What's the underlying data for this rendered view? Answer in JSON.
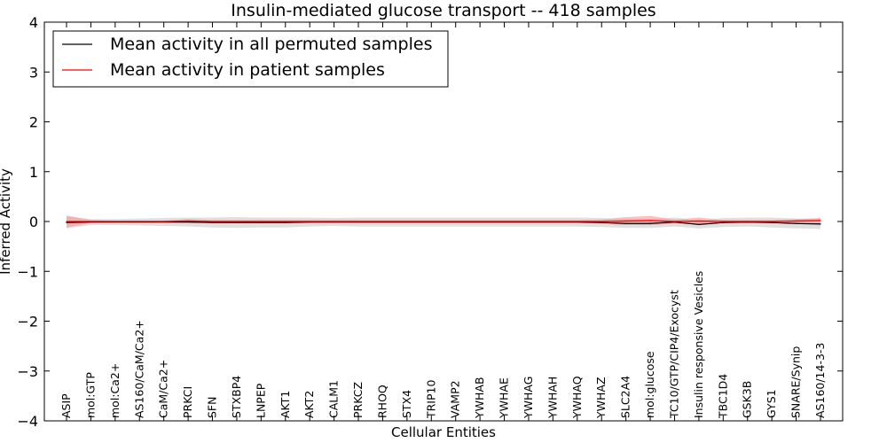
{
  "chart_data": {
    "type": "line",
    "title": "Insulin-mediated glucose transport -- 418 samples",
    "xlabel": "Cellular Entities",
    "ylabel": "Inferred Activity",
    "ylim": [
      -4,
      4
    ],
    "yticks": [
      -4,
      -3,
      -2,
      -1,
      0,
      1,
      2,
      3,
      4
    ],
    "ytick_labels": [
      "−4",
      "−3",
      "−2",
      "−1",
      "0",
      "1",
      "2",
      "3",
      "4"
    ],
    "grid": false,
    "legend": {
      "location": "top-left",
      "entries": [
        "Mean activity in all permuted samples",
        "Mean activity in patient samples"
      ]
    },
    "categories": [
      "ASIP",
      "mol:GTP",
      "mol:Ca2+",
      "AS160/CaM/Ca2+",
      "CaM/Ca2+",
      "PRKCI",
      "SFN",
      "STXBP4",
      "LNPEP",
      "AKT1",
      "AKT2",
      "CALM1",
      "PRKCZ",
      "RHOQ",
      "STX4",
      "TRIP10",
      "VAMP2",
      "YWHAB",
      "YWHAE",
      "YWHAG",
      "YWHAH",
      "YWHAQ",
      "YWHAZ",
      "SLC2A4",
      "mol:glucose",
      "TC10/GTP/CIP4/Exocyst",
      "Insulin responsive Vesicles",
      "TBC1D4",
      "GSK3B",
      "GYS1",
      "SNARE/Synip",
      "AS160/14-3-3"
    ],
    "series": [
      {
        "name": "Mean activity in all permuted samples",
        "color": "#000000",
        "band_color": "#bbbbbb",
        "values": [
          -0.02,
          -0.01,
          -0.01,
          -0.01,
          -0.01,
          -0.01,
          -0.02,
          -0.02,
          -0.02,
          -0.02,
          -0.01,
          -0.01,
          -0.01,
          -0.01,
          -0.01,
          -0.01,
          -0.01,
          -0.01,
          -0.01,
          -0.01,
          -0.01,
          -0.01,
          -0.02,
          -0.04,
          -0.04,
          -0.01,
          -0.06,
          -0.02,
          -0.01,
          -0.02,
          -0.04,
          -0.05
        ],
        "band": [
          0.12,
          0.06,
          0.06,
          0.07,
          0.08,
          0.09,
          0.1,
          0.11,
          0.1,
          0.1,
          0.09,
          0.08,
          0.09,
          0.09,
          0.09,
          0.09,
          0.09,
          0.09,
          0.09,
          0.09,
          0.09,
          0.09,
          0.09,
          0.09,
          0.09,
          0.09,
          0.08,
          0.09,
          0.09,
          0.1,
          0.1,
          0.1
        ]
      },
      {
        "name": "Mean activity in patient samples",
        "color": "#ff0000",
        "band_color": "#ff8a8a",
        "values": [
          0.0,
          0.0,
          0.0,
          0.0,
          0.0,
          0.01,
          0.0,
          0.0,
          0.0,
          0.0,
          0.0,
          0.0,
          0.0,
          0.0,
          0.0,
          0.0,
          0.0,
          0.0,
          0.0,
          0.0,
          0.0,
          0.0,
          0.0,
          0.01,
          0.02,
          0.0,
          0.01,
          0.0,
          0.0,
          0.0,
          0.01,
          0.02
        ],
        "band": [
          0.12,
          0.03,
          0.02,
          0.02,
          0.02,
          0.04,
          0.03,
          0.03,
          0.03,
          0.03,
          0.03,
          0.03,
          0.03,
          0.03,
          0.03,
          0.03,
          0.03,
          0.03,
          0.03,
          0.03,
          0.03,
          0.03,
          0.04,
          0.08,
          0.09,
          0.04,
          0.07,
          0.03,
          0.03,
          0.03,
          0.04,
          0.05
        ]
      }
    ]
  }
}
